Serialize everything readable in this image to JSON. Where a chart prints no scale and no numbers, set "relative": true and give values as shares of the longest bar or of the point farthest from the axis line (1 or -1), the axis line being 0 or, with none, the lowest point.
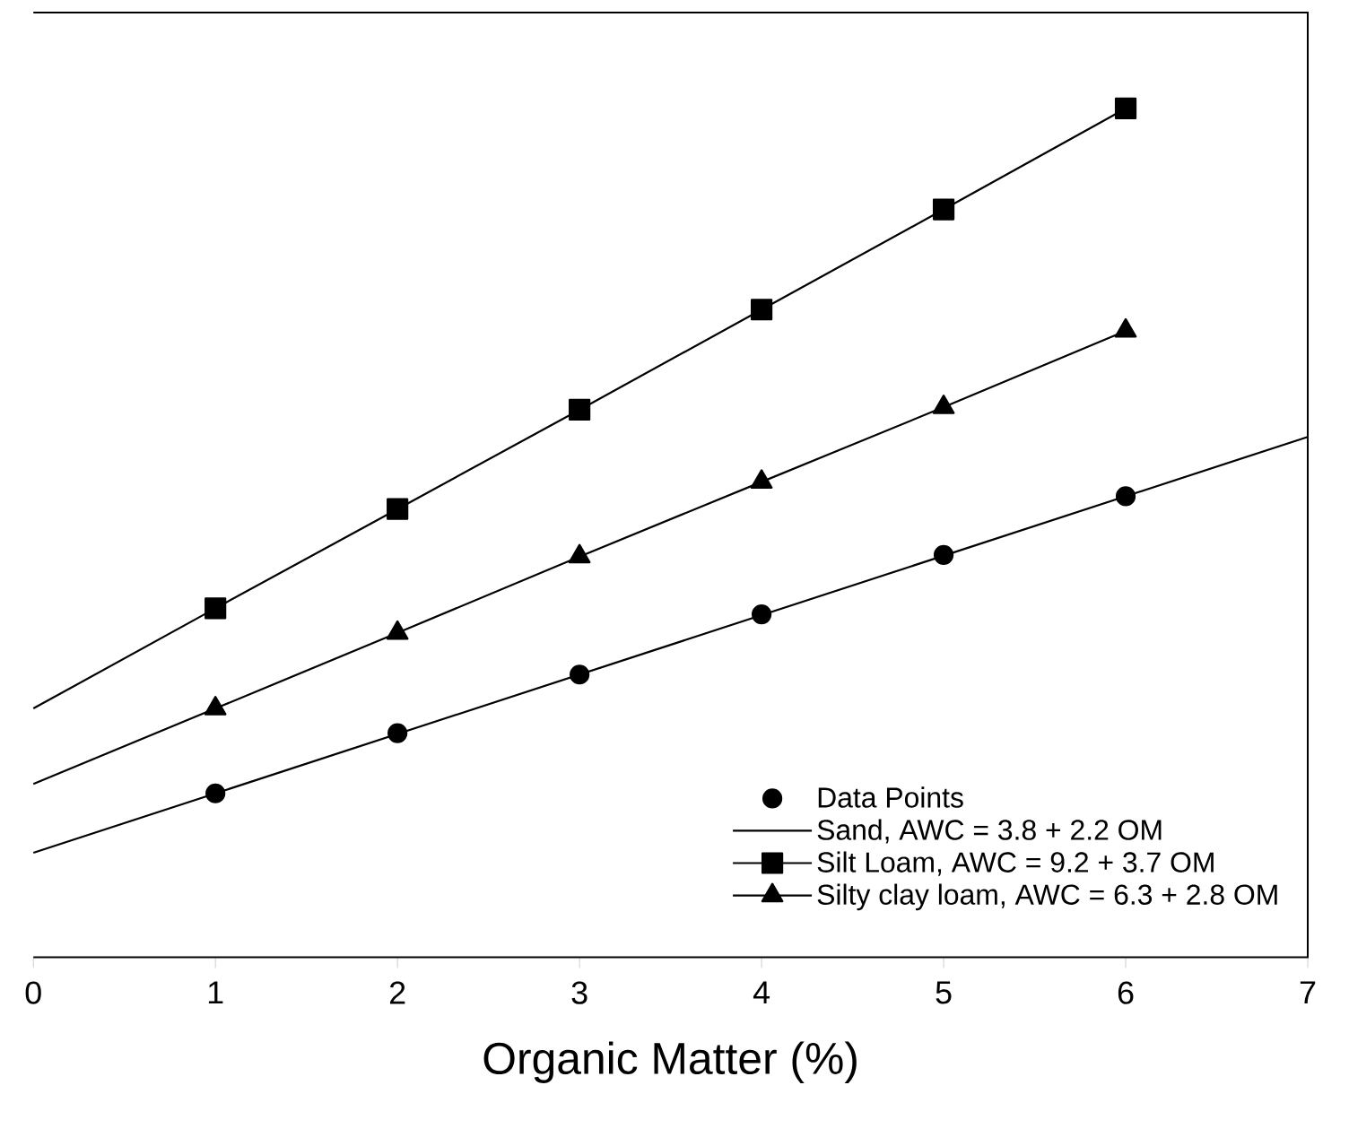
{
  "chart_data": {
    "type": "line",
    "xlabel": "Organic Matter (%)",
    "relative": true,
    "xlim": [
      0,
      7
    ],
    "xticks": [
      0,
      1,
      2,
      3,
      4,
      5,
      6,
      7
    ],
    "legend": "bottom right",
    "grid": false,
    "series": [
      {
        "name": "Data Points",
        "type": "scatter",
        "marker": "circle",
        "color": "#000000",
        "x": [
          1,
          2,
          3,
          4,
          5,
          6
        ],
        "values": [
          0.193,
          0.264,
          0.333,
          0.404,
          0.474,
          0.543
        ]
      },
      {
        "name": "Sand, AWC = 3.8 + 2.2 OM",
        "marker": "none",
        "color": "#000000",
        "x": [
          0,
          7
        ],
        "values": [
          0.123,
          0.613
        ]
      },
      {
        "name": "Silt Loam, AWC = 9.2 + 3.7 OM",
        "marker": "square",
        "color": "#000000",
        "x": [
          1,
          2,
          3,
          4,
          5,
          6
        ],
        "values": [
          0.411,
          0.528,
          0.645,
          0.763,
          0.881,
          1.0
        ]
      },
      {
        "marker": "none",
        "color": "#000000",
        "x": [
          0,
          1
        ],
        "values": [
          0.293,
          0.411
        ]
      },
      {
        "name": "Silty clay loam, AWC = 6.3 + 2.8 OM",
        "marker": "triangle",
        "color": "#000000",
        "x": [
          1,
          2,
          3,
          4,
          5,
          6
        ],
        "values": [
          0.293,
          0.382,
          0.472,
          0.56,
          0.648,
          0.738
        ]
      },
      {
        "marker": "none",
        "color": "#000000",
        "x": [
          0,
          1
        ],
        "values": [
          0.204,
          0.293
        ]
      }
    ]
  }
}
